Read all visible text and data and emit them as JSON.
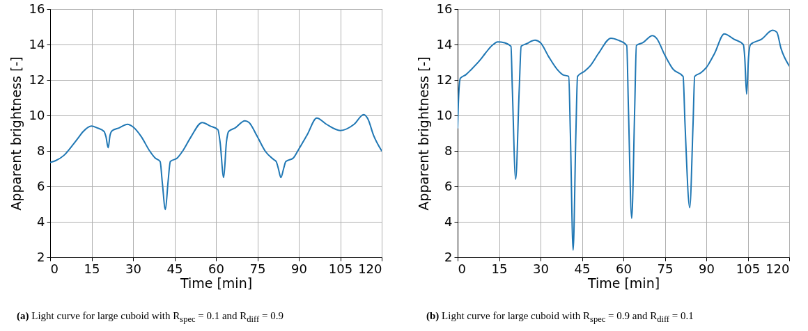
{
  "chart_data": [
    {
      "type": "line",
      "xlabel": "Time [min]",
      "ylabel": "Apparent brightness [-]",
      "xlim": [
        0,
        120
      ],
      "ylim": [
        2,
        16
      ],
      "xticks": [
        0,
        15,
        30,
        45,
        60,
        75,
        90,
        105,
        120
      ],
      "yticks": [
        2,
        4,
        6,
        8,
        10,
        12,
        14,
        16
      ],
      "grid": true,
      "annotations": [
        "(a) Light curve for large cuboid with R$_{spec}$ = 0.1 and R$_{diff}$ = 0.9"
      ],
      "series": [
        {
          "color": "#1f77b4",
          "x": [
            0,
            2,
            5,
            8,
            10,
            12,
            15,
            17,
            19.5,
            20.2,
            21,
            21.7,
            22.5,
            25,
            28,
            30,
            33,
            36,
            38,
            39.8,
            40.6,
            41.7,
            42.7,
            43.5,
            46,
            48,
            51,
            55,
            58,
            60.7,
            61.5,
            62.8,
            63.8,
            64.6,
            67,
            70.5,
            72,
            75,
            78,
            81,
            81.8,
            82.6,
            83.5,
            84.5,
            85.3,
            88,
            90,
            93,
            96.5,
            100,
            105,
            110,
            113.5,
            115,
            117,
            120
          ],
          "values": [
            7.35,
            7.45,
            7.75,
            8.3,
            8.7,
            9.1,
            9.4,
            9.3,
            9.1,
            8.8,
            8.18,
            8.9,
            9.15,
            9.3,
            9.5,
            9.35,
            8.8,
            8.0,
            7.6,
            7.4,
            6.2,
            4.7,
            6.3,
            7.4,
            7.6,
            8.0,
            8.8,
            9.6,
            9.4,
            9.2,
            8.5,
            6.5,
            8.5,
            9.1,
            9.3,
            9.7,
            9.6,
            8.8,
            7.95,
            7.5,
            7.4,
            7.0,
            6.5,
            7.0,
            7.4,
            7.6,
            8.1,
            8.9,
            9.85,
            9.5,
            9.15,
            9.5,
            10.05,
            9.8,
            8.9,
            8.0
          ]
        }
      ]
    },
    {
      "type": "line",
      "xlabel": "Time [min]",
      "ylabel": "Apparent brightness [-]",
      "xlim": [
        0,
        120
      ],
      "ylim": [
        2,
        16
      ],
      "xticks": [
        0,
        15,
        30,
        45,
        60,
        75,
        90,
        105,
        120
      ],
      "yticks": [
        2,
        4,
        6,
        8,
        10,
        12,
        14,
        16
      ],
      "grid": true,
      "annotations": [
        "(b) Light curve for large cuboid with R$_{spec}$ = 0.9 and R$_{diff}$ = 0.1"
      ],
      "series": [
        {
          "color": "#1f77b4",
          "x": [
            0,
            0.4,
            1,
            3,
            5,
            8,
            10,
            12.5,
            14.5,
            17,
            19.3,
            19.8,
            21,
            22.3,
            23,
            25,
            28,
            30,
            33,
            36,
            38,
            40.2,
            40.8,
            41.8,
            42.8,
            43.4,
            46,
            48,
            51,
            55.5,
            58,
            61.2,
            61.8,
            63,
            64.1,
            64.7,
            67,
            70.5,
            72,
            75,
            78,
            81.6,
            82.3,
            84,
            85.2,
            85.8,
            88,
            90,
            93,
            96.5,
            100,
            103.4,
            103.9,
            104.6,
            105.3,
            106,
            110,
            114,
            115.5,
            117,
            120
          ],
          "values": [
            9.3,
            11.2,
            12.1,
            12.3,
            12.6,
            13.1,
            13.5,
            13.95,
            14.15,
            14.1,
            13.9,
            11.5,
            6.4,
            11.5,
            13.9,
            14.05,
            14.25,
            14.1,
            13.3,
            12.6,
            12.3,
            12.2,
            9.0,
            2.4,
            9.0,
            12.2,
            12.5,
            12.8,
            13.5,
            14.35,
            14.25,
            13.95,
            10.5,
            4.2,
            10.5,
            13.95,
            14.1,
            14.5,
            14.35,
            13.4,
            12.6,
            12.2,
            9.5,
            4.8,
            9.5,
            12.2,
            12.4,
            12.7,
            13.5,
            14.6,
            14.3,
            14.0,
            13.3,
            11.2,
            13.3,
            14.0,
            14.3,
            14.8,
            14.7,
            13.8,
            12.8
          ]
        }
      ]
    }
  ]
}
